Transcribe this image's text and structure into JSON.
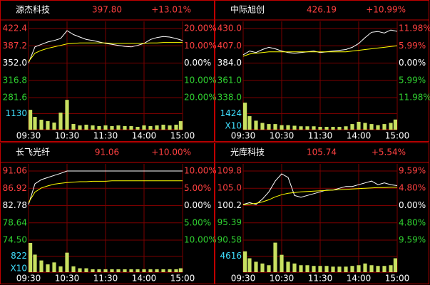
{
  "chart_data": [
    {
      "type": "line",
      "title": "源杰科技",
      "price": "397.80",
      "change": "+13.01%",
      "x": [
        0,
        10,
        20,
        30,
        40,
        50,
        60,
        70,
        80,
        90,
        100,
        110,
        120,
        130,
        140,
        150,
        160,
        170,
        180,
        190,
        200,
        210,
        220,
        230,
        240
      ],
      "xticks": [
        {
          "value": 0,
          "label": "09:30"
        },
        {
          "value": 60,
          "label": "10:30"
        },
        {
          "value": 120,
          "label": "11:30"
        },
        {
          "value": 180,
          "label": "14:00"
        },
        {
          "value": 240,
          "label": "15:00"
        }
      ],
      "xlim": [
        0,
        240
      ],
      "ylim": [
        281.6,
        422.4
      ],
      "yticks": [
        422.4,
        387.2,
        {
          "value": 352,
          "label": "352.0"
        },
        316.8,
        281.6
      ],
      "y2lim": [
        -20,
        20
      ],
      "y2ticks": [
        {
          "value": 20,
          "label": "20.00%"
        },
        {
          "value": 10,
          "label": "10.00%"
        },
        {
          "value": 0,
          "label": "0.00%"
        },
        {
          "value": -10,
          "label": "10.00%"
        },
        {
          "value": -20,
          "label": "20.00%"
        }
      ],
      "series": [
        {
          "color": "#ffffff",
          "values": [
            352,
            385,
            390,
            395,
            398,
            402,
            418,
            410,
            405,
            400,
            398,
            395,
            392,
            390,
            388,
            386,
            385,
            388,
            392,
            400,
            404,
            406,
            405,
            402,
            398
          ]
        },
        {
          "color": "#ffff00",
          "values": [
            355,
            372,
            378,
            382,
            385,
            388,
            391,
            392,
            393,
            393,
            393,
            393,
            393,
            392,
            392,
            392,
            392,
            392,
            392,
            393,
            393,
            394,
            394,
            394,
            394
          ]
        }
      ],
      "volume": {
        "color": "#c8e060",
        "ylim": [
          0,
          2260
        ],
        "yticks": [
          1130
        ],
        "values": [
          1400,
          900,
          700,
          600,
          500,
          1200,
          2100,
          400,
          300,
          350,
          300,
          250,
          300,
          250,
          300,
          250,
          250,
          200,
          300,
          250,
          300,
          350,
          300,
          350,
          600
        ]
      },
      "grid": true
    },
    {
      "type": "line",
      "title": "中际旭创",
      "price": "426.19",
      "change": "+10.99%",
      "x": [
        0,
        10,
        20,
        30,
        40,
        50,
        60,
        70,
        80,
        90,
        100,
        110,
        120,
        130,
        140,
        150,
        160,
        170,
        180,
        190,
        200,
        210,
        220,
        230,
        240
      ],
      "xticks": [
        {
          "value": 0,
          "label": "09:30"
        },
        {
          "value": 60,
          "label": "10:30"
        },
        {
          "value": 120,
          "label": "11:30"
        },
        {
          "value": 180,
          "label": "14:00"
        },
        {
          "value": 240,
          "label": "15:00"
        }
      ],
      "xlim": [
        0,
        240
      ],
      "ylim": [
        338,
        430
      ],
      "yticks": [
        {
          "value": 430,
          "label": "430.0"
        },
        {
          "value": 407,
          "label": "407.0"
        },
        {
          "value": 384,
          "label": "384.0"
        },
        {
          "value": 361,
          "label": "361.0"
        },
        {
          "value": 338,
          "label": "338.0"
        }
      ],
      "y2lim": [
        -11.98,
        11.98
      ],
      "y2ticks": [
        {
          "value": 11.98,
          "label": "11.98%"
        },
        {
          "value": 5.99,
          "label": "5.99%"
        },
        {
          "value": 0,
          "label": "0.00%"
        },
        {
          "value": -5.99,
          "label": "5.99%"
        },
        {
          "value": -11.98,
          "label": "11.98%"
        }
      ],
      "series": [
        {
          "color": "#ffffff",
          "values": [
            395,
            400,
            398,
            402,
            405,
            403,
            400,
            398,
            397,
            398,
            399,
            400,
            398,
            399,
            400,
            401,
            402,
            405,
            410,
            418,
            425,
            426,
            424,
            428,
            426.19
          ]
        },
        {
          "color": "#ffff00",
          "values": [
            393,
            396,
            397,
            398,
            399,
            399,
            399,
            399,
            399,
            399,
            399,
            399,
            399,
            399,
            399,
            399,
            399,
            400,
            401,
            402,
            403,
            404,
            405,
            406,
            407
          ]
        }
      ],
      "volume": {
        "color": "#c8e060",
        "ylim": [
          0,
          2848
        ],
        "yticks": [
          1424
        ],
        "unit": "X10",
        "values": [
          2400,
          1200,
          800,
          600,
          500,
          500,
          400,
          400,
          350,
          300,
          300,
          300,
          250,
          250,
          250,
          250,
          300,
          500,
          700,
          600,
          500,
          400,
          500,
          600,
          900
        ]
      },
      "grid": true
    },
    {
      "type": "line",
      "title": "长飞光纤",
      "price": "91.06",
      "change": "+10.00%",
      "x": [
        0,
        10,
        20,
        30,
        40,
        50,
        60,
        70,
        80,
        90,
        100,
        110,
        120,
        130,
        140,
        150,
        160,
        170,
        180,
        190,
        200,
        210,
        220,
        230,
        240
      ],
      "xticks": [
        {
          "value": 0,
          "label": "09:30"
        },
        {
          "value": 60,
          "label": "10:30"
        },
        {
          "value": 120,
          "label": "11:30"
        },
        {
          "value": 180,
          "label": "14:00"
        },
        {
          "value": 240,
          "label": "15:00"
        }
      ],
      "xlim": [
        0,
        240
      ],
      "ylim": [
        74.5,
        91.06
      ],
      "yticks": [
        91.06,
        86.92,
        82.78,
        78.64,
        {
          "value": 74.5,
          "label": "74.50"
        }
      ],
      "y2lim": [
        -10,
        10
      ],
      "y2ticks": [
        {
          "value": 10,
          "label": "10.00%"
        },
        {
          "value": 5,
          "label": "5.00%"
        },
        {
          "value": 0,
          "label": "0.00%"
        },
        {
          "value": -5,
          "label": "5.00%"
        },
        {
          "value": -10,
          "label": "10.00%"
        }
      ],
      "series": [
        {
          "color": "#ffffff",
          "values": [
            83,
            88,
            89,
            89.5,
            90,
            90.5,
            91.06,
            91.06,
            91.06,
            91.06,
            91.06,
            91.06,
            91.06,
            91.06,
            91.06,
            91.06,
            91.06,
            91.06,
            91.06,
            91.06,
            91.06,
            91.06,
            91.06,
            91.06,
            91.06
          ]
        },
        {
          "color": "#ffff00",
          "values": [
            83.5,
            86,
            87,
            87.5,
            87.9,
            88.1,
            88.3,
            88.4,
            88.5,
            88.5,
            88.6,
            88.6,
            88.6,
            88.7,
            88.7,
            88.7,
            88.7,
            88.7,
            88.7,
            88.7,
            88.7,
            88.7,
            88.7,
            88.7,
            88.7
          ]
        }
      ],
      "volume": {
        "color": "#c8e060",
        "ylim": [
          0,
          1644
        ],
        "yticks": [
          822
        ],
        "unit": "X10",
        "values": [
          1500,
          900,
          600,
          400,
          500,
          300,
          1000,
          300,
          200,
          200,
          150,
          150,
          150,
          150,
          150,
          150,
          150,
          150,
          150,
          150,
          150,
          150,
          150,
          150,
          200
        ]
      },
      "grid": true
    },
    {
      "type": "line",
      "title": "光库科技",
      "price": "105.74",
      "change": "+5.54%",
      "x": [
        0,
        10,
        20,
        30,
        40,
        50,
        60,
        70,
        80,
        90,
        100,
        110,
        120,
        130,
        140,
        150,
        160,
        170,
        180,
        190,
        200,
        210,
        220,
        230,
        240
      ],
      "xticks": [
        {
          "value": 0,
          "label": "09:30"
        },
        {
          "value": 60,
          "label": "10:30"
        },
        {
          "value": 120,
          "label": "11:30"
        },
        {
          "value": 180,
          "label": "14:00"
        },
        {
          "value": 240,
          "label": "15:00"
        }
      ],
      "xlim": [
        0,
        240
      ],
      "ylim": [
        90.58,
        109.8
      ],
      "yticks": [
        109.8,
        {
          "value": 105,
          "label": "105.0"
        },
        100.2,
        95.39,
        90.58
      ],
      "y2lim": [
        -9.59,
        9.59
      ],
      "y2ticks": [
        {
          "value": 9.59,
          "label": "9.59%"
        },
        {
          "value": 4.8,
          "label": "4.80%"
        },
        {
          "value": 0,
          "label": "0.00%"
        },
        {
          "value": -4.8,
          "label": "4.80%"
        },
        {
          "value": -9.59,
          "label": "9.59%"
        }
      ],
      "series": [
        {
          "color": "#ffffff",
          "values": [
            100.5,
            101,
            100.5,
            102,
            104,
            107,
            109,
            108,
            103,
            102.5,
            103,
            103.5,
            104,
            104.5,
            104.5,
            105,
            105.5,
            105.5,
            106,
            106.5,
            107,
            106,
            106.5,
            106,
            105.74
          ]
        },
        {
          "color": "#ffff00",
          "values": [
            100.4,
            100.6,
            100.8,
            101.2,
            101.8,
            102.6,
            103.2,
            103.6,
            103.8,
            104,
            104.1,
            104.2,
            104.3,
            104.4,
            104.5,
            104.6,
            104.7,
            104.8,
            104.9,
            105,
            105.1,
            105.2,
            105.2,
            105.3,
            105.3
          ]
        }
      ],
      "volume": {
        "color": "#c8e060",
        "ylim": [
          0,
          9232
        ],
        "yticks": [
          4616
        ],
        "values": [
          6000,
          4000,
          3000,
          2500,
          2000,
          8500,
          5000,
          3000,
          2500,
          2000,
          2000,
          1800,
          1800,
          1800,
          1600,
          1600,
          1600,
          1800,
          2000,
          2500,
          2000,
          1800,
          1800,
          2000,
          4000
        ]
      },
      "grid": true
    }
  ]
}
